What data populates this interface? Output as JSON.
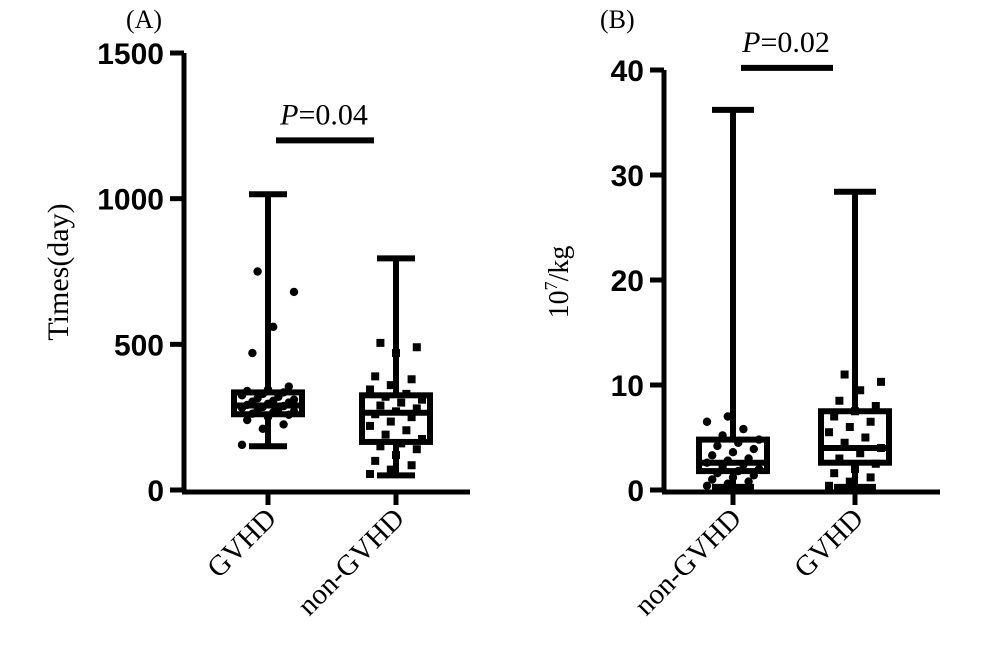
{
  "chart_data": [
    {
      "panel_label": "(A)",
      "type": "box",
      "ylabel": "Times(day)",
      "ylim": [
        0,
        1500
      ],
      "yticks": [
        0,
        500,
        1000,
        1500
      ],
      "categories": [
        "GVHD",
        "non-GVHD"
      ],
      "boxes": [
        {
          "category": "GVHD",
          "min": 150,
          "q1": 260,
          "median": 290,
          "q3": 335,
          "max": 1015
        },
        {
          "category": "non-GVHD",
          "min": 50,
          "q1": 165,
          "median": 265,
          "q3": 325,
          "max": 795
        }
      ],
      "points": [
        {
          "category": "GVHD",
          "marker": "circle",
          "values": [
            155,
            210,
            225,
            240,
            250,
            258,
            262,
            266,
            270,
            275,
            278,
            282,
            285,
            288,
            292,
            296,
            300,
            303,
            306,
            310,
            315,
            320,
            325,
            330,
            335,
            340,
            345,
            355,
            470,
            560,
            680,
            750
          ]
        },
        {
          "category": "non-GVHD",
          "marker": "square",
          "values": [
            55,
            70,
            85,
            100,
            120,
            140,
            150,
            160,
            175,
            190,
            205,
            220,
            235,
            250,
            260,
            270,
            280,
            290,
            300,
            310,
            320,
            330,
            345,
            360,
            380,
            390,
            470,
            490,
            505
          ]
        }
      ],
      "annotation": {
        "italic": "P",
        "text": "=0.04",
        "between": [
          "GVHD",
          "non-GVHD"
        ],
        "y": 1200
      }
    },
    {
      "panel_label": "(B)",
      "type": "box",
      "ylabel": {
        "base": "10",
        "sup": "7",
        "rest": "/kg"
      },
      "ylim": [
        0,
        40
      ],
      "yticks": [
        0,
        10,
        20,
        30,
        40
      ],
      "categories": [
        "non-GVHD",
        "GVHD"
      ],
      "boxes": [
        {
          "category": "non-GVHD",
          "min": 0.3,
          "q1": 1.8,
          "median": 2.6,
          "q3": 4.8,
          "max": 36.2
        },
        {
          "category": "GVHD",
          "min": 0.3,
          "q1": 2.6,
          "median": 4.0,
          "q3": 7.5,
          "max": 28.4
        }
      ],
      "points": [
        {
          "category": "non-GVHD",
          "marker": "circle",
          "values": [
            0.4,
            0.6,
            0.8,
            1.0,
            1.2,
            1.4,
            1.6,
            1.8,
            2.0,
            2.2,
            2.4,
            2.6,
            2.8,
            3.0,
            3.3,
            3.6,
            3.9,
            4.2,
            4.5,
            4.8,
            5.2,
            5.8,
            6.5,
            7.0
          ]
        },
        {
          "category": "GVHD",
          "marker": "square",
          "values": [
            0.4,
            0.8,
            1.2,
            1.6,
            2.0,
            2.5,
            3.0,
            3.5,
            4.0,
            4.5,
            5.0,
            5.5,
            6.0,
            6.5,
            7.0,
            7.5,
            8.0,
            8.5,
            9.5,
            10.3,
            11.0
          ]
        }
      ],
      "annotation": {
        "italic": "P",
        "text": "=0.02",
        "between": [
          "non-GVHD",
          "GVHD"
        ],
        "y": 40.2
      }
    }
  ]
}
